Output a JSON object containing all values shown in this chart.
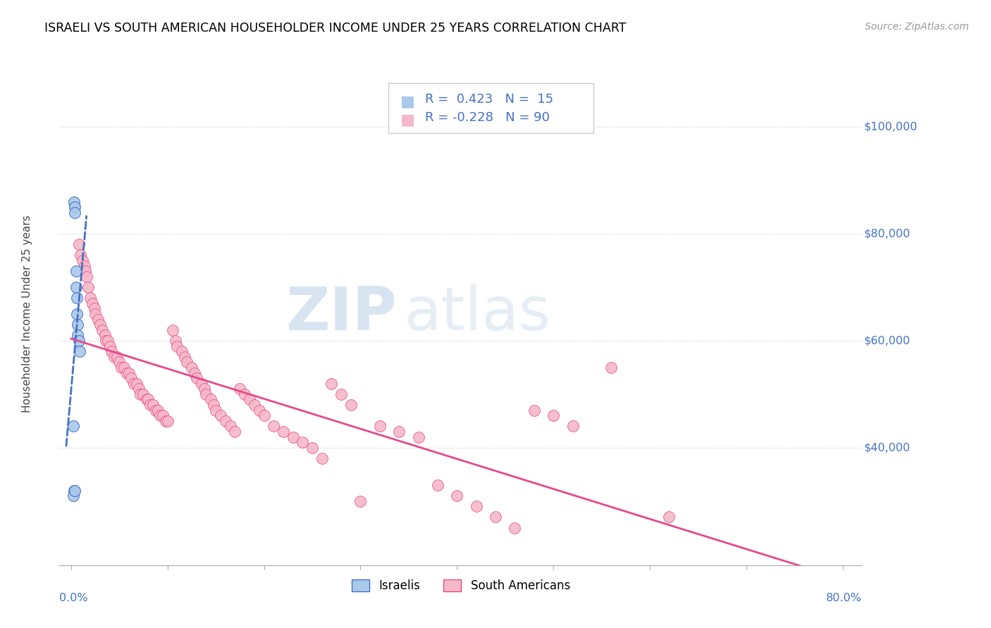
{
  "title": "ISRAELI VS SOUTH AMERICAN HOUSEHOLDER INCOME UNDER 25 YEARS CORRELATION CHART",
  "source": "Source: ZipAtlas.com",
  "ylabel": "Householder Income Under 25 years",
  "ytick_labels": [
    "$40,000",
    "$60,000",
    "$80,000",
    "$100,000"
  ],
  "ytick_values": [
    40000,
    60000,
    80000,
    100000
  ],
  "r_israeli": 0.423,
  "n_israeli": 15,
  "r_sa": -0.228,
  "n_sa": 90,
  "israeli_color": "#aac8ea",
  "sa_color": "#f5b8c8",
  "israeli_line_color": "#4472c4",
  "sa_line_color": "#e8488a",
  "watermark_color": "#ccdff0",
  "title_color": "#000000",
  "source_color": "#999999",
  "axis_label_color": "#4472c4",
  "israeli_x": [
    0.003,
    0.004,
    0.004,
    0.005,
    0.005,
    0.006,
    0.006,
    0.007,
    0.007,
    0.008,
    0.009,
    0.002,
    0.003,
    0.002,
    0.004
  ],
  "israeli_y": [
    86000,
    85000,
    84000,
    73000,
    70000,
    68000,
    65000,
    63000,
    61000,
    60000,
    58000,
    44000,
    32000,
    31000,
    32000
  ],
  "sa_x": [
    0.008,
    0.01,
    0.012,
    0.014,
    0.015,
    0.016,
    0.018,
    0.02,
    0.022,
    0.024,
    0.025,
    0.028,
    0.03,
    0.032,
    0.035,
    0.036,
    0.038,
    0.04,
    0.042,
    0.045,
    0.048,
    0.05,
    0.052,
    0.055,
    0.058,
    0.06,
    0.062,
    0.065,
    0.068,
    0.07,
    0.072,
    0.075,
    0.078,
    0.08,
    0.082,
    0.085,
    0.088,
    0.09,
    0.092,
    0.095,
    0.098,
    0.1,
    0.105,
    0.108,
    0.11,
    0.115,
    0.118,
    0.12,
    0.125,
    0.128,
    0.13,
    0.135,
    0.138,
    0.14,
    0.145,
    0.148,
    0.15,
    0.155,
    0.16,
    0.165,
    0.17,
    0.175,
    0.18,
    0.185,
    0.19,
    0.195,
    0.2,
    0.21,
    0.22,
    0.23,
    0.24,
    0.25,
    0.26,
    0.27,
    0.28,
    0.29,
    0.3,
    0.32,
    0.34,
    0.36,
    0.38,
    0.4,
    0.42,
    0.44,
    0.46,
    0.48,
    0.5,
    0.52,
    0.56,
    0.62
  ],
  "sa_y": [
    78000,
    76000,
    75000,
    74000,
    73000,
    72000,
    70000,
    68000,
    67000,
    66000,
    65000,
    64000,
    63000,
    62000,
    61000,
    60000,
    60000,
    59000,
    58000,
    57000,
    57000,
    56000,
    55000,
    55000,
    54000,
    54000,
    53000,
    52000,
    52000,
    51000,
    50000,
    50000,
    49000,
    49000,
    48000,
    48000,
    47000,
    47000,
    46000,
    46000,
    45000,
    45000,
    62000,
    60000,
    59000,
    58000,
    57000,
    56000,
    55000,
    54000,
    53000,
    52000,
    51000,
    50000,
    49000,
    48000,
    47000,
    46000,
    45000,
    44000,
    43000,
    51000,
    50000,
    49000,
    48000,
    47000,
    46000,
    44000,
    43000,
    42000,
    41000,
    40000,
    38000,
    52000,
    50000,
    48000,
    30000,
    44000,
    43000,
    42000,
    33000,
    31000,
    29000,
    27000,
    25000,
    47000,
    46000,
    44000,
    55000,
    27000
  ]
}
